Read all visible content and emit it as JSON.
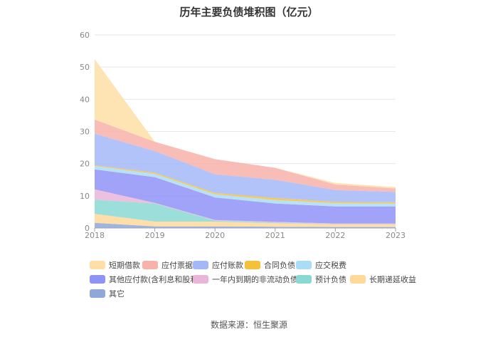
{
  "chart_data": {
    "type": "area",
    "title": "历年主要负债堆积图（亿元）",
    "x": [
      "2018",
      "2019",
      "2020",
      "2021",
      "2022",
      "2023"
    ],
    "ylim": [
      0,
      60
    ],
    "yticks": [
      0,
      10,
      20,
      30,
      40,
      50,
      60
    ],
    "grid": true,
    "legend_position": "bottom",
    "series": [
      {
        "name": "其它",
        "color": "#8fa8d8",
        "values": [
          1.6,
          0.5,
          0.5,
          0.4,
          0.3,
          0.3
        ]
      },
      {
        "name": "长期递延收益",
        "color": "#ffd89a",
        "values": [
          2.8,
          1.5,
          1.5,
          1.1,
          0.8,
          0.8
        ]
      },
      {
        "name": "预计负债",
        "color": "#8ad8d4",
        "values": [
          4.4,
          5.6,
          0.3,
          0.2,
          0.1,
          0.1
        ]
      },
      {
        "name": "一年内到期的非流动负债",
        "color": "#e9b6da",
        "values": [
          3.2,
          0.2,
          0.2,
          0.2,
          0.2,
          0.2
        ]
      },
      {
        "name": "其他应付款(含利息和股利)",
        "color": "#8f93f6",
        "values": [
          6.2,
          8.0,
          7.0,
          5.7,
          5.3,
          5.3
        ]
      },
      {
        "name": "应交税费",
        "color": "#a9dcf6",
        "values": [
          1.1,
          1.0,
          1.0,
          1.1,
          1.0,
          0.9
        ]
      },
      {
        "name": "合同负债",
        "color": "#f6c13a",
        "values": [
          0.2,
          0.4,
          0.4,
          0.6,
          0.4,
          0.4
        ]
      },
      {
        "name": "应付账款",
        "color": "#a4b8f8",
        "values": [
          9.8,
          6.7,
          5.8,
          5.7,
          3.7,
          3.2
        ]
      },
      {
        "name": "应付票据",
        "color": "#f8b2aa",
        "values": [
          4.4,
          2.9,
          4.7,
          3.7,
          1.7,
          1.1
        ]
      },
      {
        "name": "短期借款",
        "color": "#ffdfa6",
        "values": [
          18.8,
          0.0,
          0.0,
          0.0,
          0.5,
          0.4
        ]
      }
    ]
  },
  "legend_order": [
    "短期借款",
    "应付票据",
    "应付账款",
    "合同负债",
    "应交税费",
    "其他应付款(含利息和股利)",
    "一年内到期的非流动负债",
    "预计负债",
    "长期递延收益",
    "其它"
  ],
  "source": "数据来源：恒生聚源"
}
